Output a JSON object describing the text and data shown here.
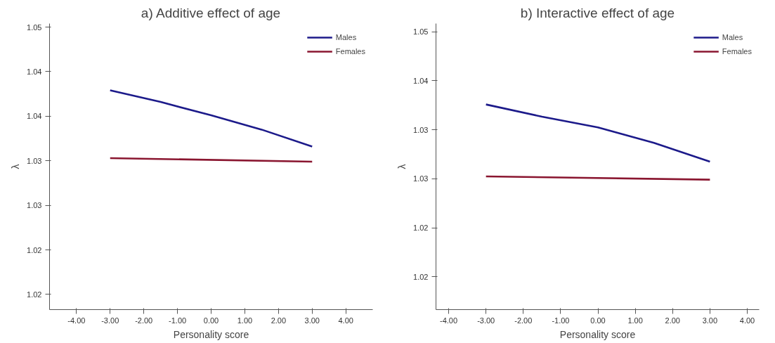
{
  "chart_data": [
    {
      "type": "line",
      "title": "a) Additive effect of age",
      "xlabel": "Personality score",
      "ylabel": "λ",
      "xlim": [
        -4.8,
        4.8
      ],
      "ylim": [
        1.0163,
        1.0484
      ],
      "xticks": [
        {
          "value": -4,
          "label": "-4.00"
        },
        {
          "value": -3,
          "label": "-3.00"
        },
        {
          "value": -2,
          "label": "-2.00"
        },
        {
          "value": -1,
          "label": "-1.00"
        },
        {
          "value": 0,
          "label": "0.00"
        },
        {
          "value": 1,
          "label": "1.00"
        },
        {
          "value": 2,
          "label": "2.00"
        },
        {
          "value": 3,
          "label": "3.00"
        },
        {
          "value": 4,
          "label": "4.00"
        }
      ],
      "yticks": [
        {
          "value": 1.018,
          "label": "1.02"
        },
        {
          "value": 1.023,
          "label": "1.02"
        },
        {
          "value": 1.028,
          "label": "1.03"
        },
        {
          "value": 1.033,
          "label": "1.03"
        },
        {
          "value": 1.038,
          "label": "1.04"
        },
        {
          "value": 1.043,
          "label": "1.04"
        },
        {
          "value": 1.048,
          "label": "1.05"
        }
      ],
      "grid": false,
      "legend": "top right",
      "line_style": "solid",
      "marker": "none",
      "series": [
        {
          "name": "Males",
          "color": "#1c1a8a",
          "x": [
            -3,
            -1.5,
            0,
            1.5,
            3
          ],
          "values": [
            1.0409,
            1.0396,
            1.0381,
            1.0365,
            1.0346
          ]
        },
        {
          "name": "Females",
          "color": "#8a1630",
          "x": [
            -3,
            3
          ],
          "values": [
            1.0333,
            1.0329
          ]
        }
      ]
    },
    {
      "type": "line",
      "title": "b) Interactive effect of age",
      "xlabel": "Personality score",
      "ylabel": "λ",
      "xlim": [
        -4.34,
        4.32
      ],
      "ylim": [
        1.012,
        1.047
      ],
      "xticks": [
        {
          "value": -4,
          "label": "-4.00"
        },
        {
          "value": -3,
          "label": "-3.00"
        },
        {
          "value": -2,
          "label": "-2.00"
        },
        {
          "value": -1,
          "label": "-1.00"
        },
        {
          "value": 0,
          "label": "0.00"
        },
        {
          "value": 1,
          "label": "1.00"
        },
        {
          "value": 2,
          "label": "2.00"
        },
        {
          "value": 3,
          "label": "3.00"
        },
        {
          "value": 4,
          "label": "4.00"
        }
      ],
      "yticks": [
        {
          "value": 1.016,
          "label": "1.02"
        },
        {
          "value": 1.022,
          "label": "1.02"
        },
        {
          "value": 1.028,
          "label": "1.03"
        },
        {
          "value": 1.034,
          "label": "1.03"
        },
        {
          "value": 1.04,
          "label": "1.04"
        },
        {
          "value": 1.046,
          "label": "1.05"
        }
      ],
      "grid": false,
      "legend": "top right",
      "line_style": "solid",
      "marker": "none",
      "series": [
        {
          "name": "Males",
          "color": "#1c1a8a",
          "x": [
            -3,
            -1.5,
            0,
            1.5,
            3
          ],
          "values": [
            1.0371,
            1.0356,
            1.0343,
            1.0324,
            1.0301
          ]
        },
        {
          "name": "Females",
          "color": "#8a1630",
          "x": [
            -3,
            3
          ],
          "values": [
            1.0283,
            1.0279
          ]
        }
      ]
    }
  ]
}
